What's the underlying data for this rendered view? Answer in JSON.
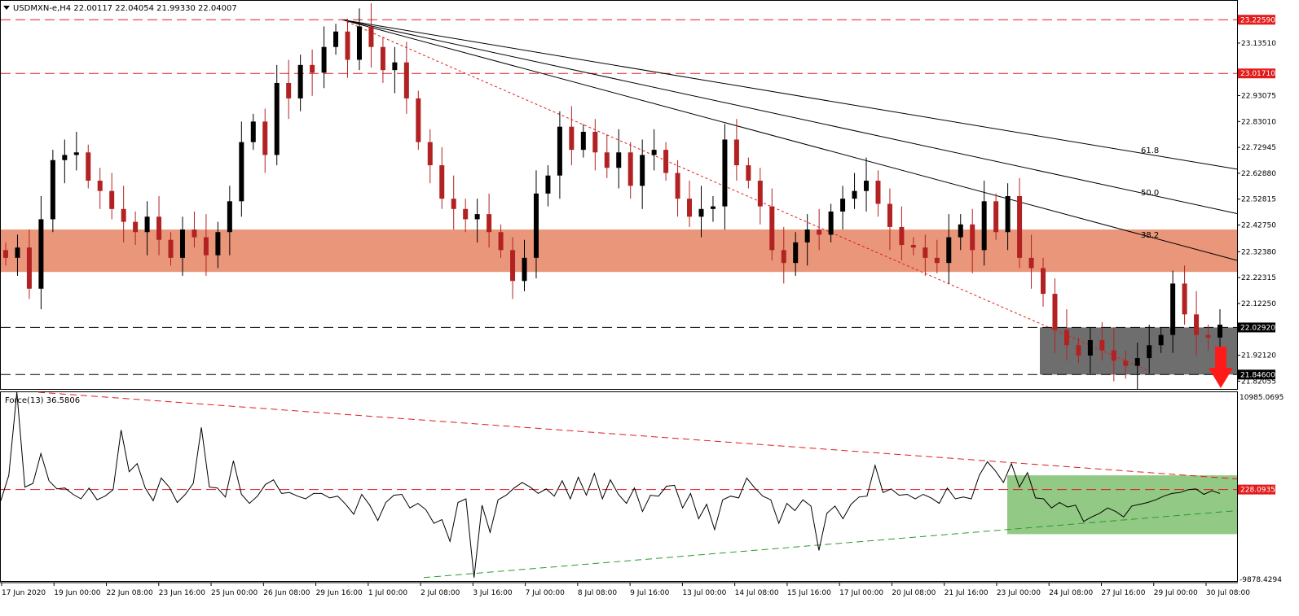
{
  "header": {
    "symbol_line": "USDMXN-e,H4  22.00117 22.04054 21.99330 22.04007"
  },
  "colors": {
    "bull": "#000000",
    "bear": "#b22222",
    "resistance_zone": "#e9967a",
    "support_zone": "#6e6e6e",
    "indicator_zone": "#7fbf6e",
    "red_line": "#e31b1b",
    "green_line": "#2a9a2a",
    "arrow": "#ff1a1a"
  },
  "chart_data": [
    {
      "type": "candlestick",
      "title": "USDMXN-e,H4",
      "ohlc_header": {
        "open": 22.00117,
        "high": 22.04054,
        "low": 21.9933,
        "close": 22.04007
      },
      "ylim": [
        21.79,
        23.29
      ],
      "y_ticks": [
        "23.13510",
        "22.93075",
        "22.83010",
        "22.72945",
        "22.62880",
        "22.52815",
        "22.42750",
        "22.32380",
        "22.22315",
        "22.12250",
        "21.92120",
        "21.82055"
      ],
      "price_labels": [
        {
          "value": 23.2259,
          "text": "23.22590",
          "style": "red-dashed"
        },
        {
          "value": 23.0171,
          "text": "23.01710",
          "style": "red-dashed"
        },
        {
          "value": 22.0292,
          "text": "22.02920",
          "style": "black-dashed"
        },
        {
          "value": 21.846,
          "text": "21.84600",
          "style": "black-dashed"
        }
      ],
      "x_labels": [
        "17 Jun 2020",
        "19 Jun 00:00",
        "22 Jun 08:00",
        "23 Jun 16:00",
        "25 Jun 00:00",
        "26 Jun 08:00",
        "29 Jun 16:00",
        "1 Jul 00:00",
        "2 Jul 08:00",
        "3 Jul 16:00",
        "7 Jul 00:00",
        "8 Jul 08:00",
        "9 Jul 16:00",
        "13 Jul 00:00",
        "14 Jul 08:00",
        "15 Jul 16:00",
        "17 Jul 00:00",
        "20 Jul 08:00",
        "21 Jul 16:00",
        "23 Jul 00:00",
        "24 Jul 08:00",
        "27 Jul 16:00",
        "29 Jul 00:00",
        "30 Jul 08:00"
      ],
      "resistance_zone": [
        22.245,
        22.41
      ],
      "support_zone": [
        21.846,
        22.0292
      ],
      "fib_labels": [
        "61.8",
        "50.0",
        "38.2"
      ],
      "fib_lines": [
        {
          "label": "61.8",
          "end_price": 22.645
        },
        {
          "label": "50.0",
          "end_price": 22.472
        },
        {
          "label": "38.2",
          "end_price": 22.29
        }
      ],
      "fan_origin_price": 23.2259,
      "trend_line_end_price": 21.86,
      "close_path": [
        22.3,
        22.34,
        22.18,
        22.45,
        22.68,
        22.7,
        22.71,
        22.6,
        22.56,
        22.49,
        22.44,
        22.4,
        22.46,
        22.37,
        22.3,
        22.41,
        22.38,
        22.31,
        22.4,
        22.52,
        22.75,
        22.83,
        22.7,
        22.98,
        22.92,
        23.05,
        23.02,
        23.12,
        23.18,
        23.07,
        23.2,
        23.12,
        23.03,
        23.06,
        22.92,
        22.75,
        22.66,
        22.53,
        22.49,
        22.45,
        22.47,
        22.4,
        22.33,
        22.21,
        22.3,
        22.55,
        22.62,
        22.81,
        22.72,
        22.79,
        22.71,
        22.65,
        22.71,
        22.58,
        22.7,
        22.72,
        22.63,
        22.53,
        22.46,
        22.49,
        22.5,
        22.76,
        22.66,
        22.6,
        22.5,
        22.33,
        22.28,
        22.36,
        22.41,
        22.39,
        22.48,
        22.53,
        22.56,
        22.6,
        22.51,
        22.42,
        22.35,
        22.34,
        22.3,
        22.28,
        22.38,
        22.43,
        22.33,
        22.52,
        22.4,
        22.54,
        22.3,
        22.26,
        22.16,
        22.02,
        21.96,
        21.92,
        21.98,
        21.94,
        21.9,
        21.88,
        21.91,
        21.96,
        22.0,
        22.2,
        22.08,
        22.0,
        21.99,
        22.04
      ]
    },
    {
      "type": "line",
      "title": "Force(13) 36.5806",
      "ylim": [
        -9878.4294,
        10985.0695
      ],
      "y_ticks": [
        "10985.0695",
        "-9878.4294"
      ],
      "price_labels": [
        {
          "value": 228.0935,
          "text": "228.0935",
          "style": "red-dashed"
        }
      ],
      "values": [
        -1000,
        1800,
        10985,
        500,
        900,
        4200,
        1200,
        300,
        400,
        -300,
        -800,
        400,
        -900,
        -500,
        200,
        6800,
        2200,
        3100,
        400,
        -1000,
        1500,
        500,
        -1200,
        -300,
        900,
        7100,
        500,
        400,
        -600,
        3400,
        -300,
        -1300,
        -500,
        800,
        1300,
        -200,
        -100,
        -500,
        -800,
        -200,
        -200,
        -700,
        -500,
        -1400,
        -2500,
        -300,
        -1500,
        -3200,
        -1200,
        -400,
        -300,
        -1800,
        -1300,
        -2000,
        -3500,
        -3100,
        -5500,
        -1200,
        -800,
        -9500,
        -1500,
        -4500,
        -900,
        -400,
        400,
        1000,
        500,
        -200,
        300,
        -500,
        1200,
        -800,
        1600,
        -400,
        2000,
        -800,
        1300,
        -300,
        -1300,
        400,
        -2200,
        -400,
        -500,
        600,
        700,
        -1800,
        -200,
        -3000,
        -1400,
        -4200,
        -900,
        -500,
        -700,
        1500,
        400,
        -500,
        -900,
        -3500,
        -1300,
        -2100,
        -900,
        -1600,
        -6500,
        -2400,
        -1600,
        -3000,
        -1400,
        -600,
        -500,
        2900,
        -100,
        300,
        -400,
        -300,
        -800,
        -300,
        -700,
        -1300,
        400,
        -800,
        -600,
        -800,
        1800,
        3300,
        2300,
        1000,
        3100,
        500,
        2100,
        -700,
        -800,
        -1800,
        -1200,
        -1700,
        -1500,
        -3300,
        -2800,
        -2400,
        -1800,
        -2200,
        -2800,
        -1600,
        -1400,
        -1200,
        -900,
        -500,
        -200,
        -100,
        200,
        300,
        -300,
        100,
        -200
      ],
      "falling_trend": {
        "start": 10985,
        "end": 1400
      },
      "rising_trend": {
        "start": -9500,
        "end": -2100
      },
      "indicator_zone": [
        -4700,
        1800
      ]
    }
  ]
}
